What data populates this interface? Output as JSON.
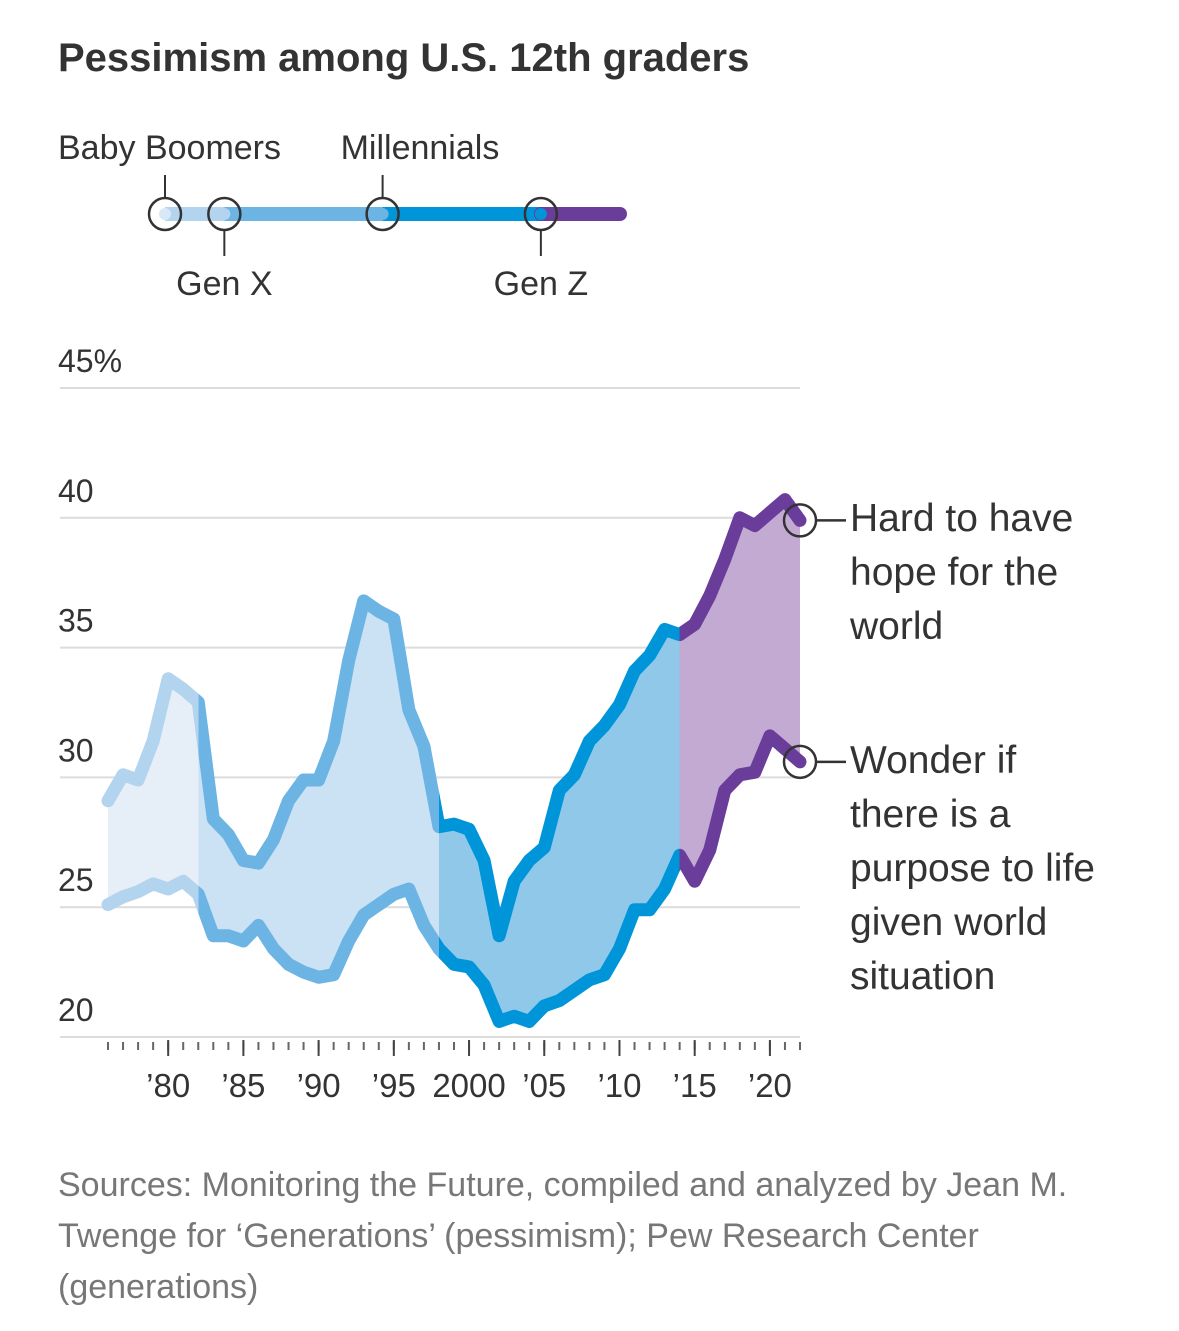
{
  "chart_data": {
    "type": "line",
    "title": "Pessimism among U.S. 12th graders",
    "x": [
      1976,
      1977,
      1978,
      1979,
      1980,
      1981,
      1982,
      1983,
      1984,
      1985,
      1986,
      1987,
      1988,
      1989,
      1990,
      1991,
      1992,
      1993,
      1994,
      1995,
      1996,
      1997,
      1998,
      1999,
      2000,
      2001,
      2002,
      2003,
      2004,
      2005,
      2006,
      2007,
      2008,
      2009,
      2010,
      2011,
      2012,
      2013,
      2014,
      2015,
      2016,
      2017,
      2018,
      2019,
      2020,
      2021,
      2022
    ],
    "series": [
      {
        "name": "Hard to have hope for the world",
        "values": [
          29.1,
          30.1,
          29.9,
          31.4,
          33.8,
          33.4,
          32.9,
          28.4,
          27.8,
          26.8,
          26.7,
          27.6,
          29.1,
          29.9,
          29.9,
          31.4,
          34.5,
          36.8,
          36.4,
          36.1,
          32.6,
          31.2,
          28.1,
          28.2,
          28.0,
          26.8,
          23.9,
          26.0,
          26.8,
          27.3,
          29.5,
          30.1,
          31.4,
          32.0,
          32.8,
          34.1,
          34.7,
          35.7,
          35.5,
          35.9,
          37.0,
          38.4,
          40.0,
          39.7,
          40.2,
          40.7,
          39.9
        ]
      },
      {
        "name": "Wonder if there is a purpose to life given world situation",
        "values": [
          25.1,
          25.4,
          25.6,
          25.9,
          25.7,
          26.0,
          25.5,
          23.9,
          23.9,
          23.7,
          24.3,
          23.4,
          22.8,
          22.5,
          22.3,
          22.4,
          23.7,
          24.7,
          25.1,
          25.5,
          25.7,
          24.3,
          23.4,
          22.8,
          22.7,
          22.0,
          20.6,
          20.8,
          20.6,
          21.2,
          21.4,
          21.8,
          22.2,
          22.4,
          23.4,
          24.9,
          24.9,
          25.7,
          27.0,
          26.0,
          27.2,
          29.5,
          30.1,
          30.2,
          31.6,
          31.1,
          30.6
        ]
      }
    ],
    "generations": [
      {
        "name": "Baby Boomers",
        "start": 1976,
        "color": "#b3d4ee",
        "fill": "#e6eef8"
      },
      {
        "name": "Gen X",
        "start": 1982,
        "color": "#6cb4e4",
        "fill": "#cbe1f4"
      },
      {
        "name": "Millennials",
        "start": 1998,
        "color": "#0095d9",
        "fill": "#90c8ea"
      },
      {
        "name": "Gen Z",
        "start": 2014,
        "color": "#6a3d9a",
        "fill": "#c2aad2"
      }
    ],
    "xlim": [
      1976,
      2022
    ],
    "xticks": [
      {
        "value": 1980,
        "label": "’80"
      },
      {
        "value": 1985,
        "label": "’85"
      },
      {
        "value": 1990,
        "label": "’90"
      },
      {
        "value": 1995,
        "label": "’95"
      },
      2000,
      {
        "value": 2005,
        "label": "’05"
      },
      {
        "value": 2010,
        "label": "’10"
      },
      {
        "value": 2015,
        "label": "’15"
      },
      {
        "value": 2020,
        "label": "’20"
      }
    ],
    "ylim": [
      20,
      45
    ],
    "yticks": [
      20,
      25,
      30,
      35,
      40,
      {
        "value": 45,
        "label": "45%"
      }
    ],
    "grid": true,
    "source": "Sources: Monitoring the Future, compiled and analyzed by Jean M. Twenge for  ‘Generations’ (pessimism); Pew Research Center (generations)"
  }
}
